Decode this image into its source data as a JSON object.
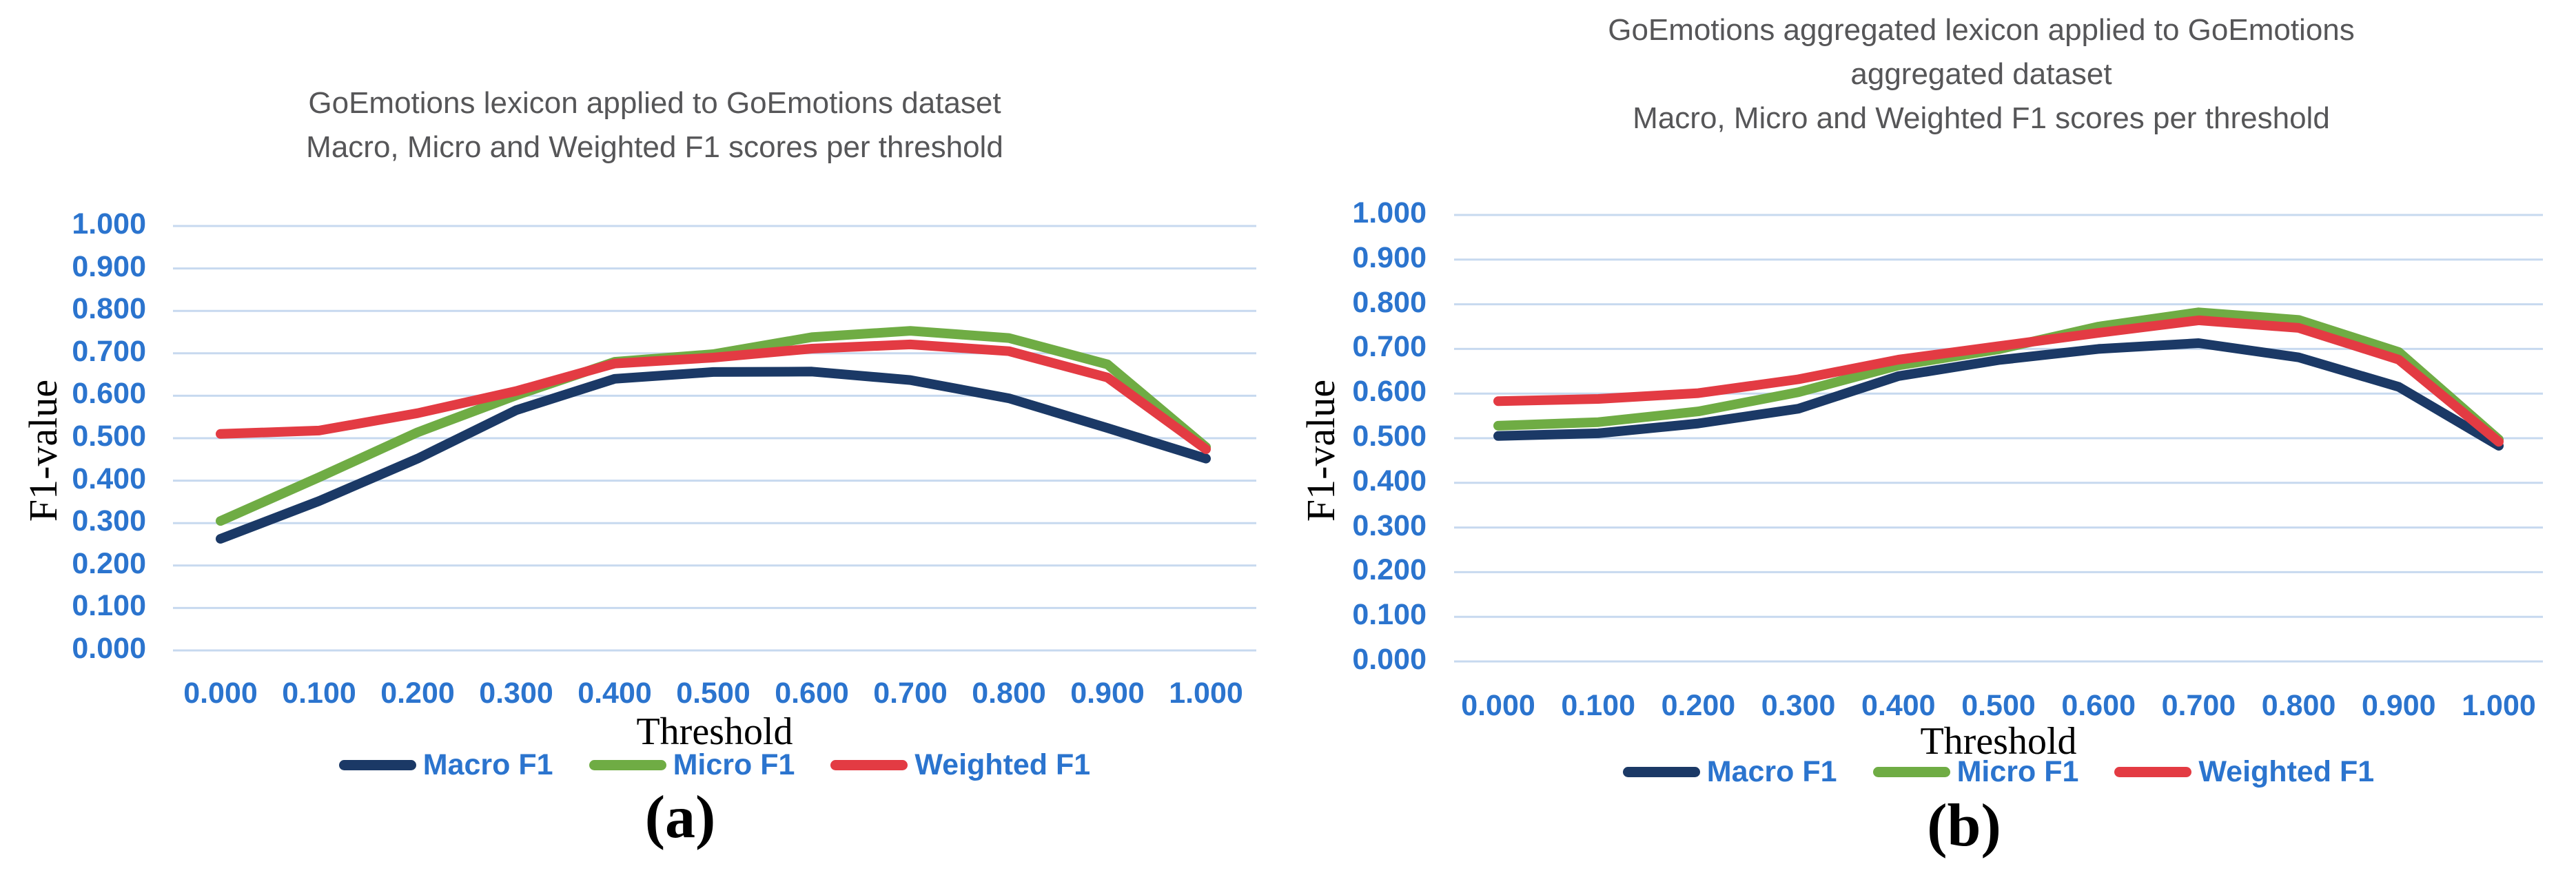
{
  "styles": {
    "axis_text_blue": "#2B74CE",
    "gridline_blue": "#C7D9EF",
    "title_gray": "#565658",
    "background": "#FFFFFF"
  },
  "chart_data": [
    {
      "type": "line",
      "panel_label": "(a)",
      "title_lines": [
        "GoEmotions lexicon applied to GoEmotions dataset",
        "Macro, Micro and Weighted F1 scores per threshold"
      ],
      "title": "GoEmotions lexicon applied to GoEmotions dataset — Macro, Micro and Weighted F1 scores per threshold",
      "xlabel": "Threshold",
      "ylabel": "F1-value",
      "xlim": [
        0.0,
        1.0
      ],
      "ylim": [
        0.0,
        1.0
      ],
      "grid": "horizontal",
      "legend_position": "bottom",
      "x_tick_labels": [
        "0.000",
        "0.100",
        "0.200",
        "0.300",
        "0.400",
        "0.500",
        "0.600",
        "0.700",
        "0.800",
        "0.900",
        "1.000"
      ],
      "y_tick_labels": [
        "1.000",
        "0.900",
        "0.800",
        "0.700",
        "0.600",
        "0.500",
        "0.400",
        "0.300",
        "0.200",
        "0.100",
        "0.000"
      ],
      "series": [
        {
          "name": "Macro F1",
          "color": "#1B3966",
          "values": [
            0.263,
            0.352,
            0.452,
            0.566,
            0.64,
            0.656,
            0.657,
            0.637,
            0.594,
            0.524,
            0.452
          ]
        },
        {
          "name": "Micro F1",
          "color": "#6FAC44",
          "values": [
            0.305,
            0.408,
            0.514,
            0.601,
            0.68,
            0.698,
            0.738,
            0.753,
            0.736,
            0.674,
            0.479
          ]
        },
        {
          "name": "Weighted F1",
          "color": "#E33B43",
          "values": [
            0.51,
            0.518,
            0.559,
            0.611,
            0.676,
            0.69,
            0.711,
            0.721,
            0.705,
            0.643,
            0.474
          ]
        }
      ]
    },
    {
      "type": "line",
      "panel_label": "(b)",
      "title_lines": [
        "GoEmotions aggregated lexicon applied to GoEmotions",
        "aggregated dataset",
        "Macro, Micro and Weighted F1 scores per threshold"
      ],
      "title": "GoEmotions aggregated lexicon applied to GoEmotions aggregated dataset — Macro, Micro and Weighted F1 scores per threshold",
      "xlabel": "Threshold",
      "ylabel": "F1-value",
      "xlim": [
        0.0,
        1.0
      ],
      "ylim": [
        0.0,
        1.0
      ],
      "grid": "horizontal",
      "legend_position": "bottom",
      "x_tick_labels": [
        "0.000",
        "0.100",
        "0.200",
        "0.300",
        "0.400",
        "0.500",
        "0.600",
        "0.700",
        "0.800",
        "0.900",
        "1.000"
      ],
      "y_tick_labels": [
        "1.000",
        "0.900",
        "0.800",
        "0.700",
        "0.600",
        "0.500",
        "0.400",
        "0.300",
        "0.200",
        "0.100",
        "0.000"
      ],
      "series": [
        {
          "name": "Macro F1",
          "color": "#1B3966",
          "values": [
            0.505,
            0.511,
            0.533,
            0.566,
            0.639,
            0.675,
            0.7,
            0.713,
            0.681,
            0.615,
            0.483
          ]
        },
        {
          "name": "Micro F1",
          "color": "#6FAC44",
          "values": [
            0.528,
            0.536,
            0.56,
            0.603,
            0.663,
            0.699,
            0.75,
            0.782,
            0.765,
            0.693,
            0.497
          ]
        },
        {
          "name": "Weighted F1",
          "color": "#E33B43",
          "values": [
            0.583,
            0.588,
            0.601,
            0.632,
            0.676,
            0.706,
            0.736,
            0.764,
            0.747,
            0.676,
            0.492
          ]
        }
      ]
    }
  ]
}
